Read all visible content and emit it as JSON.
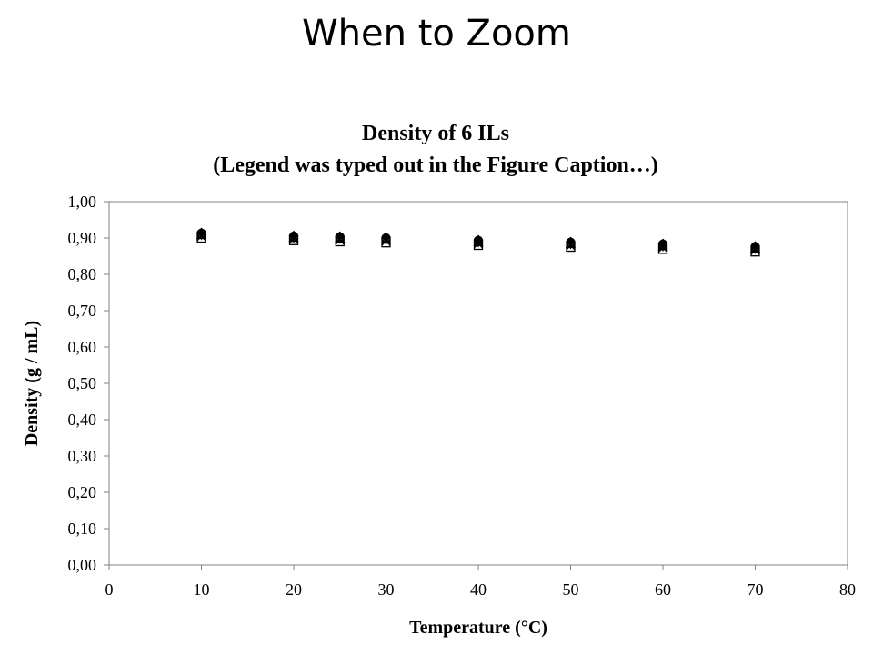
{
  "slide": {
    "title": "When to Zoom"
  },
  "chart_data": {
    "type": "scatter",
    "title": "Density of 6 ILs",
    "subtitle": "(Legend was typed out in the Figure Caption…)",
    "xlabel": "Temperature (°C)",
    "ylabel": "Density (g / mL)",
    "xlim": [
      0,
      80
    ],
    "ylim": [
      0,
      1
    ],
    "x_ticks": [
      0,
      10,
      20,
      30,
      40,
      50,
      60,
      70,
      80
    ],
    "x_tick_labels": [
      "0",
      "10",
      "20",
      "30",
      "40",
      "50",
      "60",
      "70",
      "80"
    ],
    "y_ticks": [
      0,
      0.1,
      0.2,
      0.3,
      0.4,
      0.5,
      0.6,
      0.7,
      0.8,
      0.9,
      1.0
    ],
    "y_tick_labels": [
      "0,00",
      "0,10",
      "0,20",
      "0,30",
      "0,40",
      "0,50",
      "0,60",
      "0,70",
      "0,80",
      "0,90",
      "1,00"
    ],
    "grid": false,
    "legend": "none",
    "x": [
      10,
      20,
      25,
      30,
      40,
      50,
      60,
      70
    ],
    "series": [
      {
        "marker": "diamond",
        "values": [
          0.915,
          0.907,
          0.905,
          0.902,
          0.895,
          0.89,
          0.885,
          0.878
        ]
      },
      {
        "marker": "circle",
        "values": [
          0.913,
          0.905,
          0.903,
          0.9,
          0.893,
          0.888,
          0.883,
          0.876
        ]
      },
      {
        "marker": "triangle",
        "values": [
          0.908,
          0.9,
          0.898,
          0.895,
          0.888,
          0.883,
          0.877,
          0.87
        ]
      },
      {
        "marker": "square",
        "values": [
          0.9,
          0.893,
          0.89,
          0.887,
          0.88,
          0.875,
          0.869,
          0.862
        ]
      },
      {
        "marker": "x",
        "values": [
          0.904,
          0.897,
          0.894,
          0.891,
          0.884,
          0.879,
          0.873,
          0.866
        ]
      },
      {
        "marker": "star",
        "values": [
          0.906,
          0.898,
          0.896,
          0.893,
          0.886,
          0.881,
          0.875,
          0.868
        ]
      }
    ]
  }
}
